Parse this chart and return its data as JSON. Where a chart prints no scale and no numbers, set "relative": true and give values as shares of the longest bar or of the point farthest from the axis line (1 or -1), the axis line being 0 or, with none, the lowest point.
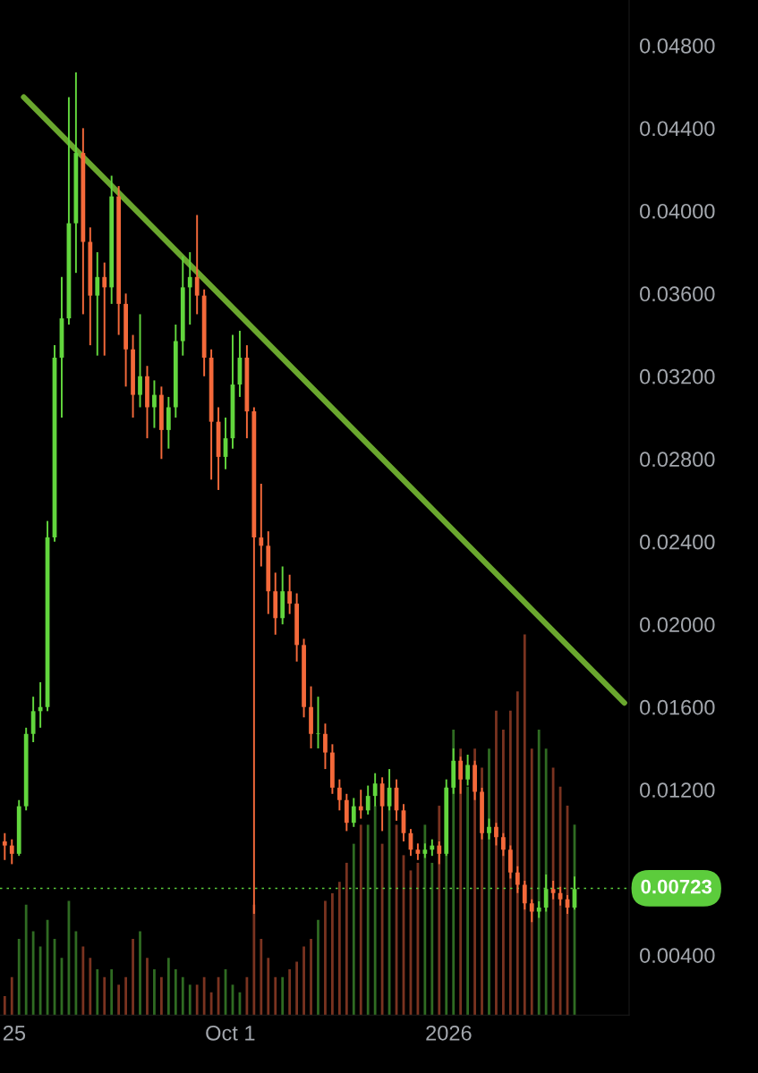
{
  "chart_data": [
    {
      "type": "candlestick",
      "x": [
        "2025-06-28",
        "2025-07-01",
        "2025-07-04",
        "2025-07-07",
        "2025-07-10",
        "2025-07-13",
        "2025-07-16",
        "2025-07-19",
        "2025-07-22",
        "2025-07-25",
        "2025-07-28",
        "2025-07-31",
        "2025-08-03",
        "2025-08-06",
        "2025-08-09",
        "2025-08-12",
        "2025-08-15",
        "2025-08-18",
        "2025-08-21",
        "2025-08-24",
        "2025-08-27",
        "2025-08-30",
        "2025-09-02",
        "2025-09-05",
        "2025-09-08",
        "2025-09-11",
        "2025-09-14",
        "2025-09-17",
        "2025-09-20",
        "2025-09-23",
        "2025-09-26",
        "2025-09-29",
        "2025-10-02",
        "2025-10-05",
        "2025-10-08",
        "2025-10-11",
        "2025-10-14",
        "2025-10-17",
        "2025-10-20",
        "2025-10-23",
        "2025-10-26",
        "2025-10-29",
        "2025-11-01",
        "2025-11-04",
        "2025-11-07",
        "2025-11-10",
        "2025-11-13",
        "2025-11-16",
        "2025-11-19",
        "2025-11-22",
        "2025-11-25",
        "2025-11-28",
        "2025-12-01",
        "2025-12-04",
        "2025-12-07",
        "2025-12-10",
        "2025-12-13",
        "2025-12-16",
        "2025-12-19",
        "2025-12-22",
        "2025-12-25",
        "2025-12-28",
        "2025-12-31",
        "2026-01-03",
        "2026-01-06",
        "2026-01-09",
        "2026-01-12",
        "2026-01-15",
        "2026-01-18",
        "2026-01-21",
        "2026-01-24",
        "2026-01-27",
        "2026-01-30",
        "2026-02-02",
        "2026-02-05",
        "2026-02-08",
        "2026-02-11",
        "2026-02-14",
        "2026-02-17",
        "2026-02-20",
        "2026-02-23"
      ],
      "series": [
        {
          "ohlc": [
            [
              0.0095,
              0.0099,
              0.0086,
              0.0093
            ],
            [
              0.0093,
              0.0096,
              0.0084,
              0.0089
            ],
            [
              0.0089,
              0.0115,
              0.0088,
              0.0112
            ],
            [
              0.0112,
              0.015,
              0.011,
              0.0147
            ],
            [
              0.0147,
              0.0165,
              0.0143,
              0.0158
            ],
            [
              0.0158,
              0.0172,
              0.015,
              0.016
            ],
            [
              0.016,
              0.025,
              0.0158,
              0.0242
            ],
            [
              0.0242,
              0.0335,
              0.024,
              0.0329
            ],
            [
              0.0329,
              0.0368,
              0.03,
              0.0348
            ],
            [
              0.0348,
              0.0455,
              0.0345,
              0.0394
            ],
            [
              0.0394,
              0.0467,
              0.037,
              0.0428
            ],
            [
              0.0428,
              0.044,
              0.035,
              0.0385
            ],
            [
              0.0385,
              0.0392,
              0.0335,
              0.0359
            ],
            [
              0.0359,
              0.038,
              0.033,
              0.0368
            ],
            [
              0.0368,
              0.0375,
              0.033,
              0.0363
            ],
            [
              0.0363,
              0.0417,
              0.0355,
              0.0407
            ],
            [
              0.0407,
              0.0412,
              0.034,
              0.0355
            ],
            [
              0.0355,
              0.036,
              0.0315,
              0.0333
            ],
            [
              0.0333,
              0.034,
              0.03,
              0.0311
            ],
            [
              0.0311,
              0.035,
              0.0305,
              0.032
            ],
            [
              0.032,
              0.0325,
              0.029,
              0.0305
            ],
            [
              0.0305,
              0.0318,
              0.0295,
              0.0311
            ],
            [
              0.0311,
              0.0315,
              0.028,
              0.0294
            ],
            [
              0.0294,
              0.031,
              0.0285,
              0.0305
            ],
            [
              0.0305,
              0.0345,
              0.03,
              0.0337
            ],
            [
              0.0337,
              0.0378,
              0.033,
              0.0363
            ],
            [
              0.0363,
              0.038,
              0.0345,
              0.0368
            ],
            [
              0.0368,
              0.0398,
              0.035,
              0.0359
            ],
            [
              0.0359,
              0.0362,
              0.032,
              0.0329
            ],
            [
              0.0329,
              0.0333,
              0.027,
              0.0298
            ],
            [
              0.0298,
              0.0305,
              0.0265,
              0.0281
            ],
            [
              0.0281,
              0.03,
              0.0275,
              0.029
            ],
            [
              0.029,
              0.034,
              0.0285,
              0.0316
            ],
            [
              0.0316,
              0.0342,
              0.031,
              0.0329
            ],
            [
              0.0329,
              0.0335,
              0.029,
              0.0303
            ],
            [
              0.0303,
              0.0305,
              0.006,
              0.0242
            ],
            [
              0.0242,
              0.0268,
              0.0228,
              0.0238
            ],
            [
              0.0238,
              0.0245,
              0.0205,
              0.0216
            ],
            [
              0.0216,
              0.0225,
              0.0195,
              0.0203
            ],
            [
              0.0203,
              0.0228,
              0.02,
              0.0216
            ],
            [
              0.0216,
              0.0224,
              0.0205,
              0.021
            ],
            [
              0.021,
              0.0215,
              0.0182,
              0.019
            ],
            [
              0.019,
              0.0193,
              0.0155,
              0.016
            ],
            [
              0.016,
              0.017,
              0.014,
              0.0147
            ],
            [
              0.0147,
              0.0165,
              0.014,
              0.0147
            ],
            [
              0.0147,
              0.0152,
              0.013,
              0.0138
            ],
            [
              0.0138,
              0.0142,
              0.0118,
              0.0121
            ],
            [
              0.0121,
              0.0125,
              0.011,
              0.0115
            ],
            [
              0.0115,
              0.0118,
              0.01,
              0.0104
            ],
            [
              0.0104,
              0.0116,
              0.0102,
              0.0112
            ],
            [
              0.0112,
              0.012,
              0.0106,
              0.011
            ],
            [
              0.011,
              0.0122,
              0.0108,
              0.0117
            ],
            [
              0.0117,
              0.0128,
              0.0112,
              0.0123
            ],
            [
              0.0123,
              0.0126,
              0.01,
              0.0112
            ],
            [
              0.0112,
              0.013,
              0.011,
              0.0121
            ],
            [
              0.0121,
              0.0125,
              0.0105,
              0.011
            ],
            [
              0.011,
              0.0113,
              0.0095,
              0.0099
            ],
            [
              0.0099,
              0.0101,
              0.0088,
              0.0091
            ],
            [
              0.0091,
              0.0094,
              0.0086,
              0.0089
            ],
            [
              0.0089,
              0.0094,
              0.0087,
              0.0091
            ],
            [
              0.0091,
              0.0096,
              0.0088,
              0.0093
            ],
            [
              0.0093,
              0.0095,
              0.0084,
              0.0089
            ],
            [
              0.0089,
              0.0125,
              0.0088,
              0.0121
            ],
            [
              0.0121,
              0.014,
              0.0118,
              0.0134
            ],
            [
              0.0134,
              0.0136,
              0.0118,
              0.0125
            ],
            [
              0.0125,
              0.0137,
              0.0122,
              0.0132
            ],
            [
              0.0132,
              0.0134,
              0.0115,
              0.0119
            ],
            [
              0.0119,
              0.0121,
              0.0096,
              0.0099
            ],
            [
              0.0099,
              0.0106,
              0.0096,
              0.0102
            ],
            [
              0.0102,
              0.0104,
              0.0093,
              0.0097
            ],
            [
              0.0097,
              0.0099,
              0.0088,
              0.0091
            ],
            [
              0.0091,
              0.0093,
              0.0077,
              0.008
            ],
            [
              0.008,
              0.0083,
              0.007,
              0.0074
            ],
            [
              0.0074,
              0.0076,
              0.0062,
              0.0065
            ],
            [
              0.0065,
              0.0067,
              0.0056,
              0.0061
            ],
            [
              0.0061,
              0.0066,
              0.0058,
              0.0063
            ],
            [
              0.0063,
              0.0079,
              0.0061,
              0.0072
            ],
            [
              0.0072,
              0.0076,
              0.0067,
              0.007
            ],
            [
              0.007,
              0.0073,
              0.0064,
              0.0067
            ],
            [
              0.0067,
              0.0069,
              0.006,
              0.0063
            ],
            [
              0.0063,
              0.0078,
              0.0062,
              0.0072
            ]
          ],
          "colors": [
            "#f4693a",
            "#f4693a",
            "#62d63d",
            "#62d63d",
            "#62d63d",
            "#62d63d",
            "#62d63d",
            "#62d63d",
            "#62d63d",
            "#62d63d",
            "#62d63d",
            "#f4693a",
            "#f4693a",
            "#62d63d",
            "#f4693a",
            "#62d63d",
            "#f4693a",
            "#f4693a",
            "#f4693a",
            "#62d63d",
            "#f4693a",
            "#62d63d",
            "#f4693a",
            "#62d63d",
            "#62d63d",
            "#62d63d",
            "#62d63d",
            "#f4693a",
            "#f4693a",
            "#f4693a",
            "#f4693a",
            "#62d63d",
            "#62d63d",
            "#62d63d",
            "#f4693a",
            "#f4693a",
            "#f4693a",
            "#f4693a",
            "#f4693a",
            "#62d63d",
            "#f4693a",
            "#f4693a",
            "#f4693a",
            "#f4693a",
            "#62d63d",
            "#f4693a",
            "#f4693a",
            "#f4693a",
            "#f4693a",
            "#62d63d",
            "#f4693a",
            "#62d63d",
            "#62d63d",
            "#f4693a",
            "#62d63d",
            "#f4693a",
            "#f4693a",
            "#f4693a",
            "#f4693a",
            "#62d63d",
            "#62d63d",
            "#f4693a",
            "#62d63d",
            "#62d63d",
            "#f4693a",
            "#62d63d",
            "#f4693a",
            "#f4693a",
            "#62d63d",
            "#f4693a",
            "#f4693a",
            "#f4693a",
            "#f4693a",
            "#f4693a",
            "#f4693a",
            "#62d63d",
            "#62d63d",
            "#f4693a",
            "#f4693a",
            "#f4693a",
            "#62d63d"
          ]
        },
        {
          "type": "line",
          "x": [
            "2025-07-06",
            "2026-03-16"
          ],
          "values": [
            0.0455,
            0.0162
          ],
          "color": "#6aa72e"
        }
      ],
      "xlim": [
        "2025-06-26",
        "2026-03-18"
      ],
      "xticks": [
        {
          "value": "2025-07-02",
          "label": "25"
        },
        {
          "value": "2025-10-01",
          "label": "Oct 1"
        },
        {
          "value": "2026-01-01",
          "label": "2026"
        }
      ],
      "ylim": [
        0.0011,
        0.0502
      ],
      "yticks": [
        {
          "value": 0.004,
          "label": "0.00400"
        },
        {
          "value": 0.012,
          "label": "0.01200"
        },
        {
          "value": 0.016,
          "label": "0.01600"
        },
        {
          "value": 0.02,
          "label": "0.02000"
        },
        {
          "value": 0.024,
          "label": "0.02400"
        },
        {
          "value": 0.028,
          "label": "0.02800"
        },
        {
          "value": 0.032,
          "label": "0.03200"
        },
        {
          "value": 0.036,
          "label": "0.03600"
        },
        {
          "value": 0.04,
          "label": "0.04000"
        },
        {
          "value": 0.044,
          "label": "0.04400"
        },
        {
          "value": 0.048,
          "label": "0.04800"
        }
      ],
      "ref_lines": [
        {
          "axis": "y",
          "value": 0.00723,
          "label": "0.00723",
          "color": "#5ccc3c",
          "line_style": "dotted"
        }
      ]
    },
    {
      "type": "bar",
      "relative": true,
      "tick_labels": false,
      "x": [
        "2025-06-28",
        "2025-07-01",
        "2025-07-04",
        "2025-07-07",
        "2025-07-10",
        "2025-07-13",
        "2025-07-16",
        "2025-07-19",
        "2025-07-22",
        "2025-07-25",
        "2025-07-28",
        "2025-07-31",
        "2025-08-03",
        "2025-08-06",
        "2025-08-09",
        "2025-08-12",
        "2025-08-15",
        "2025-08-18",
        "2025-08-21",
        "2025-08-24",
        "2025-08-27",
        "2025-08-30",
        "2025-09-02",
        "2025-09-05",
        "2025-09-08",
        "2025-09-11",
        "2025-09-14",
        "2025-09-17",
        "2025-09-20",
        "2025-09-23",
        "2025-09-26",
        "2025-09-29",
        "2025-10-02",
        "2025-10-05",
        "2025-10-08",
        "2025-10-11",
        "2025-10-14",
        "2025-10-17",
        "2025-10-20",
        "2025-10-23",
        "2025-10-26",
        "2025-10-29",
        "2025-11-01",
        "2025-11-04",
        "2025-11-07",
        "2025-11-10",
        "2025-11-13",
        "2025-11-16",
        "2025-11-19",
        "2025-11-22",
        "2025-11-25",
        "2025-11-28",
        "2025-12-01",
        "2025-12-04",
        "2025-12-07",
        "2025-12-10",
        "2025-12-13",
        "2025-12-16",
        "2025-12-19",
        "2025-12-22",
        "2025-12-25",
        "2025-12-28",
        "2025-12-31",
        "2026-01-03",
        "2026-01-06",
        "2026-01-09",
        "2026-01-12",
        "2026-01-15",
        "2026-01-18",
        "2026-01-21",
        "2026-01-24",
        "2026-01-27",
        "2026-01-30",
        "2026-02-02",
        "2026-02-05",
        "2026-02-08",
        "2026-02-11",
        "2026-02-14",
        "2026-02-17",
        "2026-02-20",
        "2026-02-23"
      ],
      "xlim": [
        "2025-06-26",
        "2026-03-18"
      ],
      "values": [
        0.05,
        0.1,
        0.2,
        0.29,
        0.22,
        0.18,
        0.25,
        0.2,
        0.15,
        0.3,
        0.22,
        0.18,
        0.15,
        0.12,
        0.1,
        0.12,
        0.08,
        0.1,
        0.2,
        0.22,
        0.15,
        0.12,
        0.1,
        0.15,
        0.12,
        0.1,
        0.08,
        0.08,
        0.1,
        0.06,
        0.1,
        0.12,
        0.08,
        0.06,
        0.1,
        0.29,
        0.2,
        0.15,
        0.1,
        0.1,
        0.12,
        0.14,
        0.18,
        0.2,
        0.25,
        0.3,
        0.32,
        0.35,
        0.4,
        0.45,
        0.5,
        0.5,
        0.55,
        0.45,
        0.55,
        0.5,
        0.42,
        0.38,
        0.4,
        0.5,
        0.4,
        0.55,
        0.6,
        0.75,
        0.7,
        0.6,
        0.7,
        0.65,
        0.7,
        0.8,
        0.75,
        0.8,
        0.85,
        1.0,
        0.7,
        0.75,
        0.7,
        0.65,
        0.6,
        0.55,
        0.5
      ],
      "colors": [
        "#7a3320",
        "#7a3320",
        "#2f6b22",
        "#2f6b22",
        "#2f6b22",
        "#2f6b22",
        "#2f6b22",
        "#2f6b22",
        "#2f6b22",
        "#2f6b22",
        "#2f6b22",
        "#7a3320",
        "#7a3320",
        "#2f6b22",
        "#7a3320",
        "#2f6b22",
        "#7a3320",
        "#7a3320",
        "#7a3320",
        "#2f6b22",
        "#7a3320",
        "#2f6b22",
        "#7a3320",
        "#2f6b22",
        "#2f6b22",
        "#2f6b22",
        "#2f6b22",
        "#7a3320",
        "#7a3320",
        "#7a3320",
        "#7a3320",
        "#2f6b22",
        "#2f6b22",
        "#2f6b22",
        "#7a3320",
        "#7a3320",
        "#7a3320",
        "#7a3320",
        "#7a3320",
        "#2f6b22",
        "#7a3320",
        "#7a3320",
        "#7a3320",
        "#7a3320",
        "#2f6b22",
        "#7a3320",
        "#7a3320",
        "#7a3320",
        "#7a3320",
        "#2f6b22",
        "#7a3320",
        "#2f6b22",
        "#2f6b22",
        "#7a3320",
        "#2f6b22",
        "#7a3320",
        "#7a3320",
        "#7a3320",
        "#7a3320",
        "#2f6b22",
        "#2f6b22",
        "#7a3320",
        "#2f6b22",
        "#2f6b22",
        "#7a3320",
        "#2f6b22",
        "#7a3320",
        "#7a3320",
        "#2f6b22",
        "#7a3320",
        "#7a3320",
        "#7a3320",
        "#7a3320",
        "#7a3320",
        "#7a3320",
        "#2f6b22",
        "#2f6b22",
        "#7a3320",
        "#7a3320",
        "#7a3320",
        "#2f6b22"
      ]
    }
  ]
}
